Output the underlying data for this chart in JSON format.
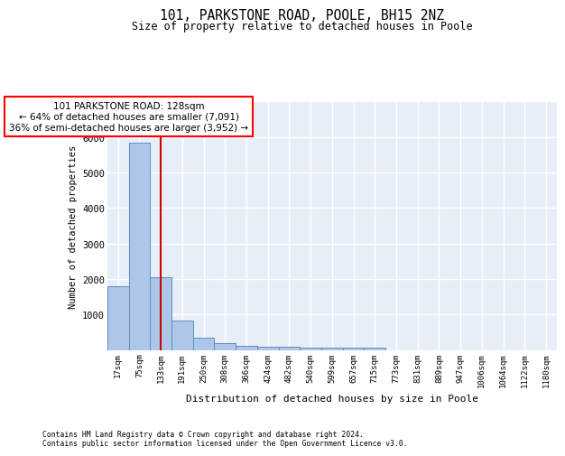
{
  "title1": "101, PARKSTONE ROAD, POOLE, BH15 2NZ",
  "title2": "Size of property relative to detached houses in Poole",
  "xlabel": "Distribution of detached houses by size in Poole",
  "ylabel": "Number of detached properties",
  "annotation_line1": "101 PARKSTONE ROAD: 128sqm",
  "annotation_line2": "← 64% of detached houses are smaller (7,091)",
  "annotation_line3": "36% of semi-detached houses are larger (3,952) →",
  "red_line_x": 2,
  "bin_labels": [
    "17sqm",
    "75sqm",
    "133sqm",
    "191sqm",
    "250sqm",
    "308sqm",
    "366sqm",
    "424sqm",
    "482sqm",
    "540sqm",
    "599sqm",
    "657sqm",
    "715sqm",
    "773sqm",
    "831sqm",
    "889sqm",
    "947sqm",
    "1006sqm",
    "1064sqm",
    "1122sqm",
    "1180sqm"
  ],
  "bin_values": [
    1800,
    5850,
    2050,
    830,
    340,
    200,
    115,
    100,
    90,
    60,
    55,
    55,
    70,
    0,
    0,
    0,
    0,
    0,
    0,
    0,
    0
  ],
  "bar_color": "#aec6e8",
  "bar_edge_color": "#5a8fc0",
  "red_line_color": "#cc0000",
  "background_color": "#e8eef8",
  "grid_color": "#ffffff",
  "ylim": [
    0,
    7000
  ],
  "footer_line1": "Contains HM Land Registry data © Crown copyright and database right 2024.",
  "footer_line2": "Contains public sector information licensed under the Open Government Licence v3.0."
}
